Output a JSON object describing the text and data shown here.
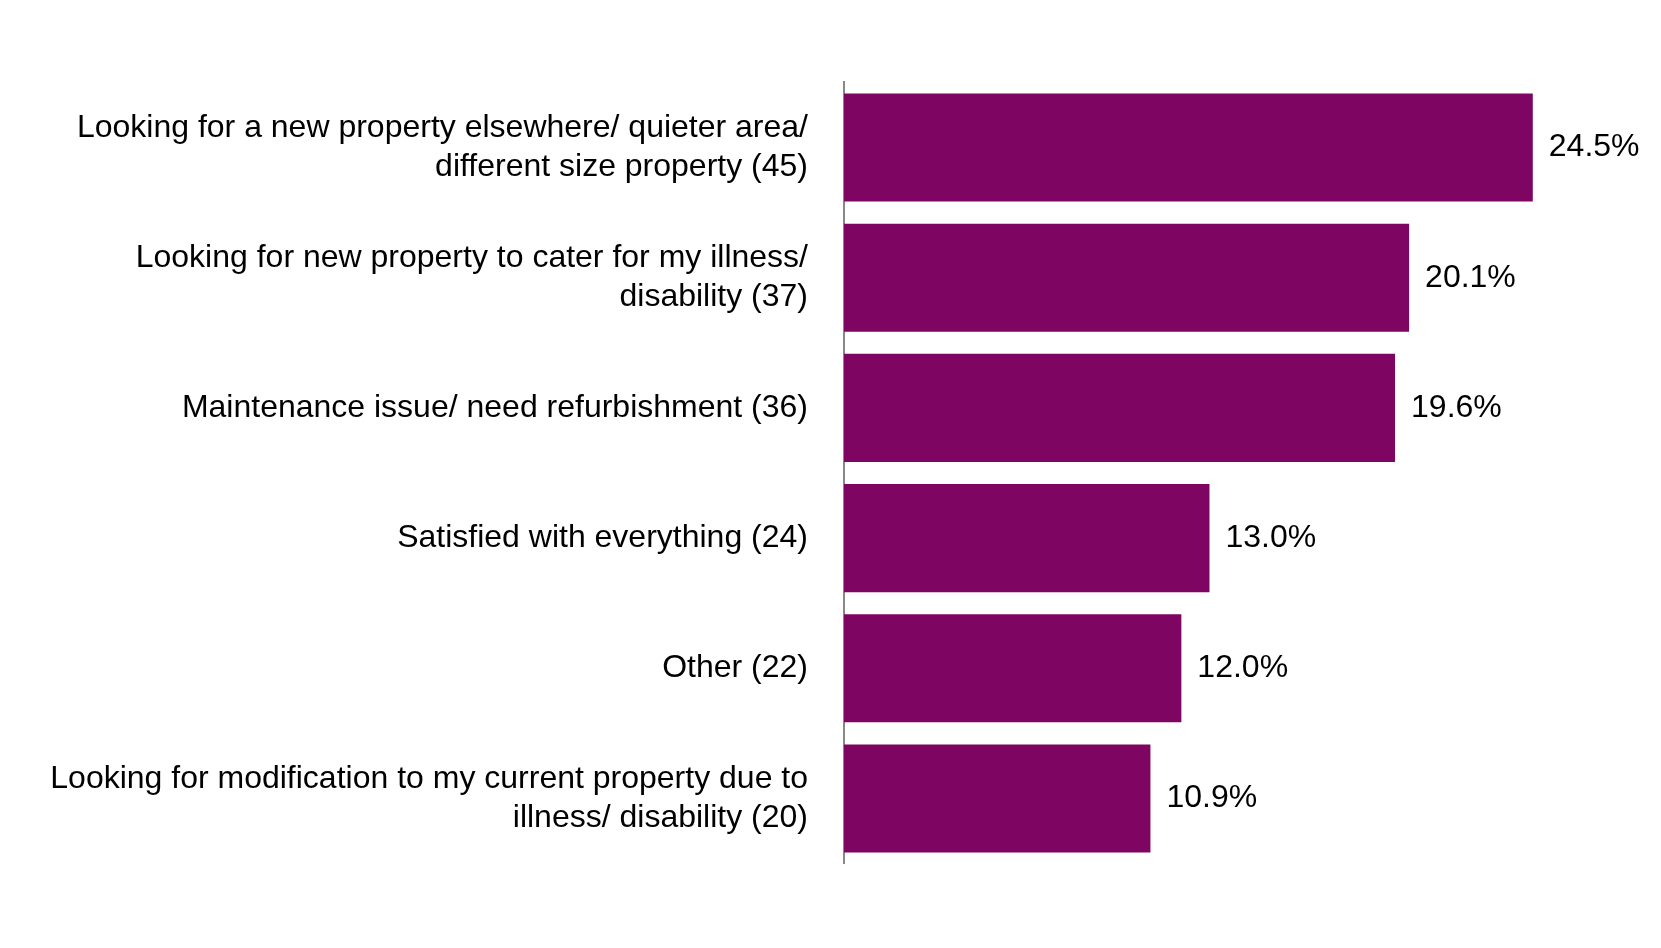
{
  "chart_data": {
    "type": "bar",
    "orientation": "horizontal",
    "categories": [
      "Looking for a new property elsewhere/ quieter area/ different size property (45)",
      "Looking for new property to cater for my illness/ disability (37)",
      "Maintenance issue/ need refurbishment (36)",
      "Satisfied with everything (24)",
      "Other (22)",
      "Looking for modification to my current property due to illness/ disability (20)"
    ],
    "values": [
      24.5,
      20.1,
      19.6,
      13.0,
      12.0,
      10.9
    ],
    "value_labels": [
      "24.5%",
      "20.1%",
      "19.6%",
      "13.0%",
      "12.0%",
      "10.9%"
    ],
    "color": "#7f0563"
  }
}
